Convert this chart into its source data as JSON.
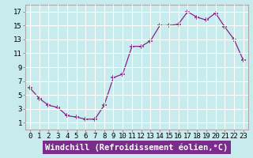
{
  "x": [
    0,
    1,
    2,
    3,
    4,
    5,
    6,
    7,
    8,
    9,
    10,
    11,
    12,
    13,
    14,
    15,
    16,
    17,
    18,
    19,
    20,
    21,
    22,
    23
  ],
  "y": [
    6.0,
    4.5,
    3.5,
    3.2,
    2.0,
    1.8,
    1.5,
    1.5,
    3.5,
    7.5,
    8.0,
    12.0,
    12.0,
    12.8,
    15.0,
    15.0,
    15.2,
    17.0,
    16.2,
    15.8,
    16.8,
    14.8,
    13.0,
    10.0
  ],
  "line_color": "#882288",
  "marker": "+",
  "marker_size": 4,
  "bg_color": "#c8ecee",
  "grid_color": "#ffffff",
  "xlabel": "Windchill (Refroidissement éolien,°C)",
  "xlabel_fontsize": 7.5,
  "tick_fontsize": 6.5,
  "xlim": [
    -0.5,
    23.5
  ],
  "ylim": [
    0,
    18
  ],
  "yticks": [
    1,
    3,
    5,
    7,
    9,
    11,
    13,
    15,
    17
  ],
  "xticks": [
    0,
    1,
    2,
    3,
    4,
    5,
    6,
    7,
    8,
    9,
    10,
    11,
    12,
    13,
    14,
    15,
    16,
    17,
    18,
    19,
    20,
    21,
    22,
    23
  ],
  "xlabel_bg": "#7b2d8b",
  "xlabel_color": "#ffffff",
  "spine_color": "#aaaaaa",
  "tick_color": "#888888"
}
